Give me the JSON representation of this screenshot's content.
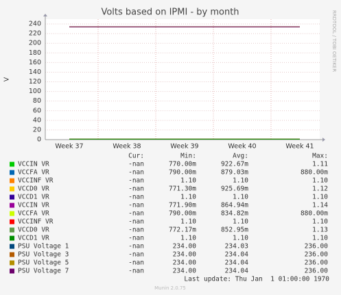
{
  "chart_data": {
    "type": "line",
    "title": "Volts based on IPMI - by month",
    "y_label": "V",
    "side_text": "RRDTOOL / TOBI OETIKER",
    "categories": [
      "Week 37",
      "Week 38",
      "Week 39",
      "Week 40",
      "Week 41"
    ],
    "ylim": [
      0,
      250
    ],
    "yticks": [
      0,
      20,
      40,
      60,
      80,
      100,
      120,
      140,
      160,
      180,
      200,
      220,
      240
    ],
    "grid": true,
    "legend_headers": [
      "Cur:",
      "Min:",
      "Avg:",
      "Max:"
    ],
    "series": [
      {
        "name": "VCCIN VR",
        "color": "#00cc00",
        "values": [
          0.92,
          0.92,
          0.92,
          0.92,
          0.92
        ],
        "legend_values": [
          "-nan",
          "770.00m",
          "922.67m",
          "1.11"
        ]
      },
      {
        "name": "VCCFA VR",
        "color": "#0066b3",
        "values": [
          0.88,
          0.88,
          0.88,
          0.88,
          0.88
        ],
        "legend_values": [
          "-nan",
          "790.00m",
          "879.03m",
          "880.00m"
        ]
      },
      {
        "name": "VCCINF VR",
        "color": "#ff8000",
        "values": [
          1.1,
          1.1,
          1.1,
          1.1,
          1.1
        ],
        "legend_values": [
          "-nan",
          "1.10",
          "1.10",
          "1.10"
        ]
      },
      {
        "name": "VCCD0 VR",
        "color": "#ffcc00",
        "values": [
          0.93,
          0.93,
          0.93,
          0.93,
          0.93
        ],
        "legend_values": [
          "-nan",
          "771.30m",
          "925.69m",
          "1.12"
        ]
      },
      {
        "name": "VCCD1 VR",
        "color": "#330099",
        "values": [
          1.1,
          1.1,
          1.1,
          1.1,
          1.1
        ],
        "legend_values": [
          "-nan",
          "1.10",
          "1.10",
          "1.10"
        ]
      },
      {
        "name": "VCCIN VR",
        "color": "#990099",
        "values": [
          0.86,
          0.86,
          0.86,
          0.86,
          0.86
        ],
        "legend_values": [
          "-nan",
          "771.90m",
          "864.94m",
          "1.14"
        ]
      },
      {
        "name": "VCCFA VR",
        "color": "#ccff00",
        "values": [
          0.83,
          0.83,
          0.83,
          0.83,
          0.83
        ],
        "legend_values": [
          "-nan",
          "790.00m",
          "834.82m",
          "880.00m"
        ]
      },
      {
        "name": "VCCINF VR",
        "color": "#ff0000",
        "values": [
          1.1,
          1.1,
          1.1,
          1.1,
          1.1
        ],
        "legend_values": [
          "-nan",
          "1.10",
          "1.10",
          "1.10"
        ]
      },
      {
        "name": "VCCD0 VR",
        "color": "#5f9a48",
        "values": [
          0.85,
          0.85,
          0.85,
          0.85,
          0.85
        ],
        "legend_values": [
          "-nan",
          "772.17m",
          "852.95m",
          "1.13"
        ]
      },
      {
        "name": "VCCD1 VR",
        "color": "#008f00",
        "values": [
          1.1,
          1.1,
          1.1,
          1.1,
          1.1
        ],
        "legend_values": [
          "-nan",
          "1.10",
          "1.10",
          "1.10"
        ]
      },
      {
        "name": "PSU Voltage 1",
        "color": "#00487d",
        "values": [
          234,
          234,
          234,
          234,
          234
        ],
        "legend_values": [
          "-nan",
          "234.00",
          "234.03",
          "236.00"
        ]
      },
      {
        "name": "PSU Voltage 3",
        "color": "#b35a00",
        "values": [
          234,
          234,
          234,
          234,
          234
        ],
        "legend_values": [
          "-nan",
          "234.00",
          "234.04",
          "236.00"
        ]
      },
      {
        "name": "PSU Voltage 5",
        "color": "#b38f00",
        "values": [
          234,
          234,
          234,
          234,
          234
        ],
        "legend_values": [
          "-nan",
          "234.00",
          "234.04",
          "236.00"
        ]
      },
      {
        "name": "PSU Voltage 7",
        "color": "#6b006b",
        "values": [
          234,
          234,
          234,
          234,
          234
        ],
        "legend_values": [
          "-nan",
          "234.00",
          "234.04",
          "236.00"
        ]
      }
    ],
    "last_update": "Last update: Thu Jan  1 01:00:00 1970",
    "footer": "Munin 2.0.75"
  }
}
